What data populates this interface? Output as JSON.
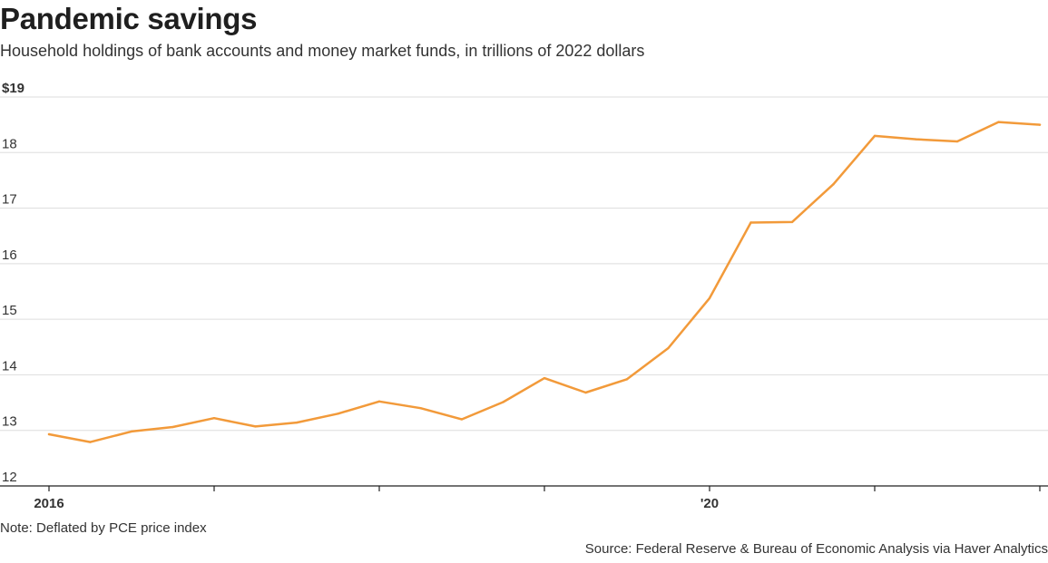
{
  "title": "Pandemic savings",
  "subtitle": "Household holdings of bank accounts and money market funds, in trillions of 2022 dollars",
  "note": "Note: Deflated by PCE price index",
  "source": "Source: Federal Reserve & Bureau of Economic Analysis via Haver Analytics",
  "colors": {
    "line": "#f29a3a",
    "grid": "#dddddd",
    "axis": "#222222"
  },
  "chart_data": {
    "type": "line",
    "title": "Pandemic savings",
    "subtitle": "Household holdings of bank accounts and money market funds, in trillions of 2022 dollars",
    "xlabel": "",
    "ylabel": "",
    "x": [
      "2016 Q1",
      "2016 Q2",
      "2016 Q3",
      "2016 Q4",
      "2017 Q1",
      "2017 Q2",
      "2017 Q3",
      "2017 Q4",
      "2018 Q1",
      "2018 Q2",
      "2018 Q3",
      "2018 Q4",
      "2019 Q1",
      "2019 Q2",
      "2019 Q3",
      "2019 Q4",
      "2020 Q1",
      "2020 Q2",
      "2020 Q3",
      "2020 Q4",
      "2021 Q1",
      "2021 Q2",
      "2021 Q3",
      "2021 Q4",
      "2022 Q1"
    ],
    "values": [
      12.93,
      12.79,
      12.98,
      13.06,
      13.22,
      13.07,
      13.14,
      13.3,
      13.52,
      13.4,
      13.2,
      13.51,
      13.94,
      13.68,
      13.92,
      14.48,
      15.38,
      16.74,
      16.75,
      17.43,
      18.3,
      18.24,
      18.2,
      18.55,
      18.5
    ],
    "ylim": [
      12,
      19
    ],
    "yticks": [
      12,
      13,
      14,
      15,
      16,
      17,
      18,
      19
    ],
    "ytick_labels": [
      "12",
      "13",
      "14",
      "15",
      "16",
      "17",
      "18",
      "$19"
    ],
    "xticks": [
      "2016 Q1",
      "2017 Q1",
      "2018 Q1",
      "2019 Q1",
      "2020 Q1",
      "2021 Q1",
      "2022 Q1"
    ],
    "xtick_labels": [
      "2016",
      "",
      "",
      "",
      "'20",
      "",
      ""
    ],
    "grid": "horizontal",
    "legend": "none"
  }
}
